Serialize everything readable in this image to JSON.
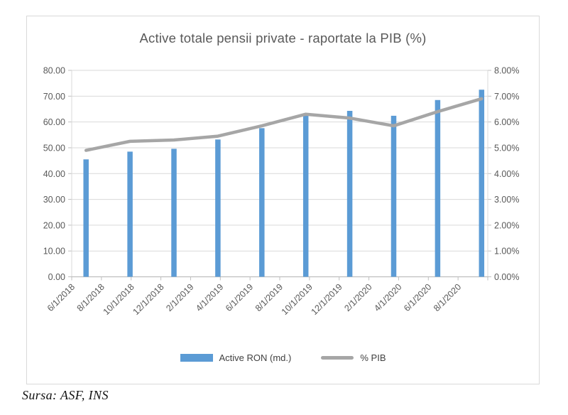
{
  "chart": {
    "title": "Active totale pensii private - raportate la PIB (%)",
    "source_note": "Sursa: ASF, INS",
    "legend": [
      {
        "label": "Active RON (md.)",
        "type": "bar",
        "color": "#5b9bd5"
      },
      {
        "label": "% PIB",
        "type": "line",
        "color": "#a6a6a6"
      }
    ]
  },
  "chart_data": {
    "type": "combo-bar-line",
    "title": "Active totale pensii private - raportate la PIB (%)",
    "gridlines": "horizontal",
    "legend_position": "bottom",
    "x_axis": {
      "kind": "date",
      "label_rotation_deg": 45,
      "tick_labels": [
        "6/1/2018",
        "8/1/2018",
        "10/1/2018",
        "12/1/2018",
        "2/1/2019",
        "4/1/2019",
        "6/1/2019",
        "8/1/2019",
        "10/1/2019",
        "12/1/2019",
        "2/1/2020",
        "4/1/2020",
        "6/1/2020",
        "8/1/2020"
      ]
    },
    "left_axis": {
      "min": 0,
      "max": 80,
      "step": 10,
      "tick_labels": [
        "80.00",
        "70.00",
        "60.00",
        "50.00",
        "40.00",
        "30.00",
        "20.00",
        "10.00",
        "0.00"
      ]
    },
    "right_axis": {
      "min": 0,
      "max": 8,
      "step": 1,
      "tick_labels": [
        "8.00%",
        "7.00%",
        "6.00%",
        "5.00%",
        "4.00%",
        "3.00%",
        "2.00%",
        "1.00%",
        "0.00%"
      ]
    },
    "point_dates": [
      "6/2018",
      "9/2018",
      "12/2018",
      "3/2019",
      "6/2019",
      "9/2019",
      "12/2019",
      "3/2020",
      "6/2020",
      "9/2020"
    ],
    "series": [
      {
        "name": "Active RON (md.)",
        "type": "bar",
        "axis": "left",
        "color": "#5b9bd5",
        "values": [
          45.5,
          48.5,
          49.6,
          53.2,
          57.6,
          62.4,
          64.3,
          62.4,
          68.5,
          72.5
        ]
      },
      {
        "name": "% PIB",
        "type": "line",
        "axis": "right",
        "color": "#a6a6a6",
        "values": [
          4.9,
          5.25,
          5.3,
          5.45,
          5.85,
          6.3,
          6.15,
          5.85,
          6.4,
          6.9
        ]
      }
    ],
    "colors": {
      "gridline": "#d9d9d9",
      "axis": "#bfbfbf",
      "side_axis": "#d9d9d9",
      "text": "#595959",
      "bar": "#5b9bd5",
      "line": "#a6a6a6"
    }
  }
}
